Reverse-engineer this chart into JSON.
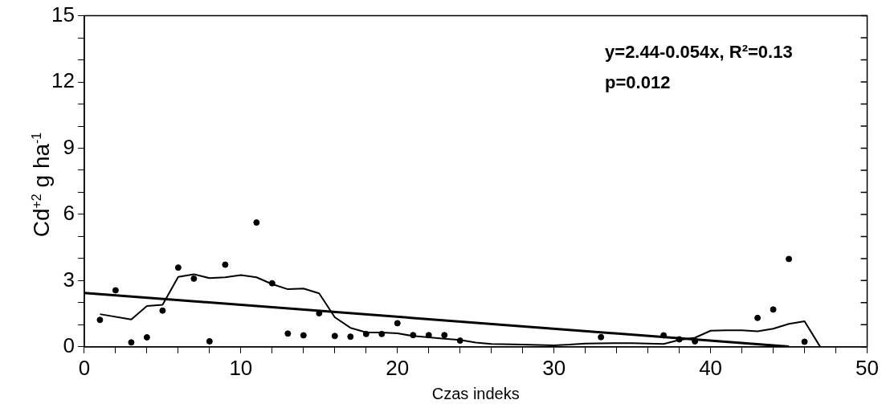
{
  "chart_data": {
    "type": "scatter",
    "xlabel": "Czas indeks",
    "ylabel": "Cd$^{+2}$ g ha$^{-1}$",
    "annotations": [
      "y=2.44-0.054x, R²=0.13",
      "p=0.012"
    ],
    "xlim": [
      0,
      50
    ],
    "ylim": [
      0,
      15
    ],
    "xticks": [
      0,
      {
        "value": 2,
        "label": null
      },
      {
        "value": 4,
        "label": null
      },
      {
        "value": 6,
        "label": null
      },
      {
        "value": 8,
        "label": null
      },
      10,
      {
        "value": 12,
        "label": null
      },
      {
        "value": 14,
        "label": null
      },
      {
        "value": 16,
        "label": null
      },
      {
        "value": 18,
        "label": null
      },
      20,
      {
        "value": 22,
        "label": null
      },
      {
        "value": 24,
        "label": null
      },
      {
        "value": 26,
        "label": null
      },
      {
        "value": 28,
        "label": null
      },
      30,
      {
        "value": 32,
        "label": null
      },
      {
        "value": 34,
        "label": null
      },
      {
        "value": 36,
        "label": null
      },
      {
        "value": 38,
        "label": null
      },
      40,
      {
        "value": 42,
        "label": null
      },
      {
        "value": 44,
        "label": null
      },
      {
        "value": 46,
        "label": null
      },
      {
        "value": 48,
        "label": null
      },
      50
    ],
    "yticks": [
      0,
      {
        "value": 1,
        "label": null
      },
      {
        "value": 2,
        "label": null
      },
      3,
      {
        "value": 4,
        "label": null
      },
      {
        "value": 5,
        "label": null
      },
      6,
      {
        "value": 7,
        "label": null
      },
      {
        "value": 8,
        "label": null
      },
      9,
      {
        "value": 10,
        "label": null
      },
      {
        "value": 11,
        "label": null
      },
      12,
      {
        "value": 13,
        "label": null
      },
      {
        "value": 14,
        "label": null
      },
      15
    ],
    "grid": false,
    "legend": false,
    "series": [
      {
        "marker": "circle",
        "color": "#000000",
        "x": [
          1,
          2,
          3,
          4,
          5,
          6,
          7,
          8,
          9,
          11,
          12,
          13,
          14,
          15,
          16,
          17,
          18,
          19,
          20,
          21,
          22,
          23,
          24,
          33,
          37,
          38,
          39,
          43,
          44,
          45,
          46
        ],
        "values": [
          1.22,
          2.56,
          0.2,
          0.43,
          1.64,
          3.59,
          3.09,
          0.25,
          3.72,
          5.63,
          2.88,
          0.6,
          0.52,
          1.52,
          0.49,
          0.46,
          0.58,
          0.58,
          1.07,
          0.53,
          0.53,
          0.53,
          0.28,
          0.44,
          0.52,
          0.34,
          0.25,
          1.31,
          1.69,
          3.98,
          0.23
        ]
      },
      {
        "type": "line",
        "marker": "none",
        "line_style": "solid",
        "color": "#000000",
        "x": [
          1,
          3,
          4,
          5,
          6,
          7,
          8,
          9,
          10,
          11,
          12,
          13,
          14,
          15,
          16,
          17,
          18,
          19,
          20,
          21,
          23,
          24,
          25,
          26,
          28,
          30,
          31,
          32,
          34,
          35,
          37,
          38,
          39,
          40,
          41,
          42,
          43,
          44,
          45,
          46,
          47
        ],
        "values": [
          1.48,
          1.24,
          1.85,
          1.9,
          3.17,
          3.29,
          3.11,
          3.15,
          3.25,
          3.15,
          2.84,
          2.61,
          2.64,
          2.42,
          1.34,
          0.86,
          0.66,
          0.65,
          0.61,
          0.49,
          0.37,
          0.31,
          0.19,
          0.13,
          0.1,
          0.07,
          0.1,
          0.15,
          0.17,
          0.17,
          0.13,
          0.31,
          0.41,
          0.73,
          0.75,
          0.75,
          0.7,
          0.82,
          1.04,
          1.16,
          0
        ]
      },
      {
        "type": "line",
        "marker": "none",
        "line_style": "solid",
        "color": "#000000",
        "x": [
          0,
          45
        ],
        "values": [
          2.44,
          0.01
        ]
      }
    ]
  }
}
